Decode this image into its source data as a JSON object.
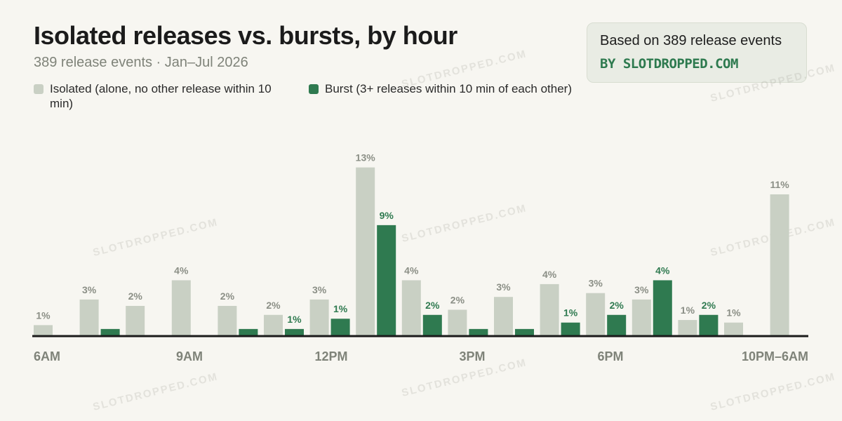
{
  "header": {
    "title": "Isolated releases vs. bursts, by hour",
    "subtitle": "389 release events · Jan–Jul 2026"
  },
  "callout": {
    "text": "Based on 389 release events",
    "brand": "BY SLOTDROPPED.COM"
  },
  "watermark": "SLOTDROPPED.COM",
  "colors": {
    "isolated": "#c9d0c4",
    "burst": "#2f7a50",
    "isolated_label": "#8b8f86",
    "burst_label": "#2f7a50",
    "axis": "#1b1b1b"
  },
  "chart_data": {
    "type": "bar",
    "title": "Isolated releases vs. bursts, by hour",
    "ylim": [
      0,
      14
    ],
    "grid": false,
    "legend_position": "top-left",
    "categories": [
      "6AM",
      "7AM",
      "8AM",
      "9AM",
      "10AM",
      "11AM",
      "12PM",
      "1PM",
      "2PM",
      "3PM",
      "4PM",
      "5PM",
      "6PM",
      "7PM",
      "8PM",
      "9PM",
      "10PM–6AM"
    ],
    "x_tick_labels": [
      "6AM",
      "9AM",
      "12PM",
      "3PM",
      "6PM",
      "10PM–6AM"
    ],
    "series": [
      {
        "name": "Isolated (alone, no other release within 10 min)",
        "values": [
          0.8,
          2.8,
          2.3,
          4.3,
          2.3,
          1.6,
          2.8,
          13.1,
          4.3,
          2.0,
          3.0,
          4.0,
          3.3,
          2.8,
          1.2,
          1.0,
          11.0
        ],
        "labels": [
          "1%",
          "3%",
          "2%",
          "4%",
          "2%",
          "2%",
          "3%",
          "13%",
          "4%",
          "2%",
          "3%",
          "4%",
          "3%",
          "3%",
          "1%",
          "1%",
          "11%"
        ]
      },
      {
        "name": "Burst (3+ releases within 10 min of each other)",
        "values": [
          0,
          0.5,
          0,
          0,
          0.5,
          0.5,
          1.3,
          8.6,
          1.6,
          0.5,
          0.5,
          1.0,
          1.6,
          4.3,
          1.6,
          0,
          0
        ],
        "labels": [
          "",
          "",
          "",
          "",
          "",
          "1%",
          "1%",
          "9%",
          "2%",
          "",
          "",
          "1%",
          "2%",
          "4%",
          "2%",
          "",
          ""
        ]
      }
    ]
  }
}
